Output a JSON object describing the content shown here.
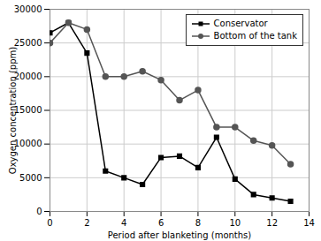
{
  "chart_data": {
    "type": "line",
    "x": [
      0,
      1,
      2,
      3,
      4,
      5,
      6,
      7,
      8,
      9,
      10,
      11,
      12,
      13
    ],
    "series": [
      {
        "name": "Conservator",
        "color": "#000000",
        "marker": "square",
        "values": [
          26500,
          28000,
          23500,
          6000,
          5000,
          4000,
          8000,
          8200,
          6500,
          11000,
          4800,
          2500,
          2000,
          1500
        ]
      },
      {
        "name": "Bottom of the tank",
        "color": "#555555",
        "marker": "circle",
        "values": [
          25000,
          28000,
          27000,
          20000,
          20000,
          20800,
          19500,
          16500,
          18000,
          12500,
          12500,
          10500,
          9800,
          7000
        ]
      }
    ],
    "xlabel": "Period after blanketing (months)",
    "ylabel": "Oxygen concentration (ppm)",
    "xlim": [
      0,
      14
    ],
    "ylim": [
      0,
      30000
    ],
    "xticks": [
      0,
      2,
      4,
      6,
      8,
      10,
      12,
      14
    ],
    "yticks": [
      0,
      5000,
      10000,
      15000,
      20000,
      25000,
      30000
    ],
    "grid": true,
    "legend": "upper right"
  }
}
